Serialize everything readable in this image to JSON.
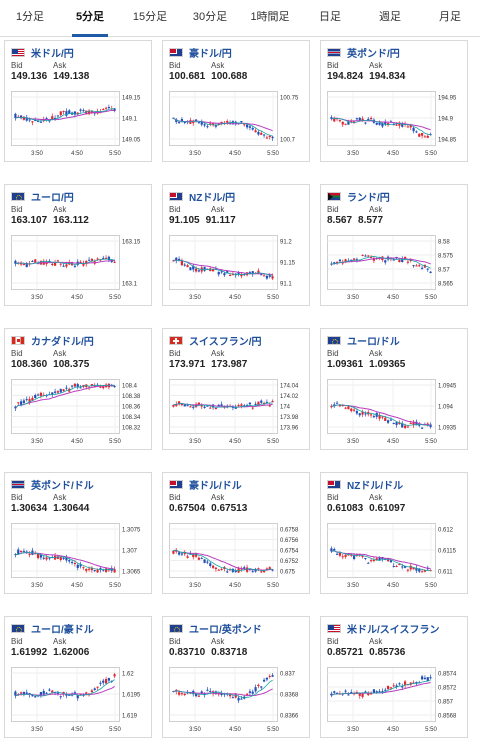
{
  "tabs": [
    {
      "label": "1分足",
      "active": false
    },
    {
      "label": "5分足",
      "active": true
    },
    {
      "label": "15分足",
      "active": false
    },
    {
      "label": "30分足",
      "active": false
    },
    {
      "label": "1時間足",
      "active": false
    },
    {
      "label": "日足",
      "active": false
    },
    {
      "label": "週足",
      "active": false
    },
    {
      "label": "月足",
      "active": false
    }
  ],
  "labels": {
    "bid": "Bid",
    "ask": "Ask"
  },
  "colors": {
    "up": "#e0262e",
    "down": "#1f4fb8",
    "ma1": "#b93cc0",
    "ma2": "#1aa2a8",
    "accent": "#1e5aa8"
  },
  "pairs": [
    {
      "name": "米ドル/円",
      "flag": "us",
      "bid": "149.136",
      "ask": "149.138",
      "yticks": [
        "149.15",
        "149.1",
        "149.05"
      ],
      "xticks": [
        "3:50",
        "4:50",
        "5:50"
      ],
      "trend": "up"
    },
    {
      "name": "豪ドル/円",
      "flag": "au",
      "bid": "100.681",
      "ask": "100.688",
      "yticks": [
        "100.75",
        "100.7"
      ],
      "xticks": [
        "3:50",
        "4:50",
        "5:50"
      ],
      "trend": "down_end"
    },
    {
      "name": "英ポンド/円",
      "flag": "gb",
      "bid": "194.824",
      "ask": "194.834",
      "yticks": [
        "194.95",
        "194.9",
        "194.85"
      ],
      "xticks": [
        "3:50",
        "4:50",
        "5:50"
      ],
      "trend": "down_end"
    },
    {
      "name": "ユーロ/円",
      "flag": "eu",
      "bid": "163.107",
      "ask": "163.112",
      "yticks": [
        "163.15",
        "163.1"
      ],
      "xticks": [
        "3:50",
        "4:50",
        "5:50"
      ],
      "trend": "flat"
    },
    {
      "name": "NZドル/円",
      "flag": "nz",
      "bid": "91.105",
      "ask": "91.117",
      "yticks": [
        "91.2",
        "91.15",
        "91.1"
      ],
      "xticks": [
        "3:50",
        "4:50",
        "5:50"
      ],
      "trend": "down"
    },
    {
      "name": "ランド/円",
      "flag": "za",
      "bid": "8.567",
      "ask": "8.577",
      "yticks": [
        "8.58",
        "8.575",
        "8.57",
        "8.565"
      ],
      "xticks": [
        "3:50",
        "4:50",
        "5:50"
      ],
      "trend": "down_end"
    },
    {
      "name": "カナダドル/円",
      "flag": "ca",
      "bid": "108.360",
      "ask": "108.375",
      "yticks": [
        "108.4",
        "108.38",
        "108.36",
        "108.34",
        "108.32"
      ],
      "xticks": [
        "3:50",
        "4:50",
        "5:50"
      ],
      "trend": "up"
    },
    {
      "name": "スイスフラン/円",
      "flag": "ch",
      "bid": "173.971",
      "ask": "173.987",
      "yticks": [
        "174.04",
        "174.02",
        "174",
        "173.98",
        "173.96"
      ],
      "xticks": [
        "3:50",
        "4:50",
        "5:50"
      ],
      "trend": "flat"
    },
    {
      "name": "ユーロ/ドル",
      "flag": "eu",
      "bid": "1.09361",
      "ask": "1.09365",
      "yticks": [
        "1.0945",
        "1.094",
        "1.0935"
      ],
      "xticks": [
        "3:50",
        "4:50",
        "5:50"
      ],
      "trend": "down"
    },
    {
      "name": "英ポンド/ドル",
      "flag": "gb",
      "bid": "1.30634",
      "ask": "1.30644",
      "yticks": [
        "1.3075",
        "1.307",
        "1.3065"
      ],
      "xticks": [
        "3:50",
        "4:50",
        "5:50"
      ],
      "trend": "down"
    },
    {
      "name": "豪ドル/ドル",
      "flag": "au",
      "bid": "0.67504",
      "ask": "0.67513",
      "yticks": [
        "0.6758",
        "0.6756",
        "0.6754",
        "0.6752",
        "0.675"
      ],
      "xticks": [
        "3:50",
        "4:50",
        "5:50"
      ],
      "trend": "down"
    },
    {
      "name": "NZドル/ドル",
      "flag": "nz",
      "bid": "0.61083",
      "ask": "0.61097",
      "yticks": [
        "0.612",
        "0.6115",
        "0.611"
      ],
      "xticks": [
        "3:50",
        "4:50",
        "5:50"
      ],
      "trend": "down"
    },
    {
      "name": "ユーロ/豪ドル",
      "flag": "eu",
      "bid": "1.61992",
      "ask": "1.62006",
      "yticks": [
        "1.62",
        "1.6195",
        "1.619"
      ],
      "xticks": [
        "3:50",
        "4:50",
        "5:50"
      ],
      "trend": "up_end"
    },
    {
      "name": "ユーロ/英ポンド",
      "flag": "eu",
      "bid": "0.83710",
      "ask": "0.83718",
      "yticks": [
        "0.837",
        "0.8368",
        "0.8366"
      ],
      "xticks": [
        "3:50",
        "4:50",
        "5:50"
      ],
      "trend": "up_end"
    },
    {
      "name": "米ドル/スイスフラン",
      "flag": "us",
      "bid": "0.85721",
      "ask": "0.85736",
      "yticks": [
        "0.8574",
        "0.8572",
        "0.857",
        "0.8568"
      ],
      "xticks": [
        "3:50",
        "4:50",
        "5:50"
      ],
      "trend": "up"
    }
  ]
}
